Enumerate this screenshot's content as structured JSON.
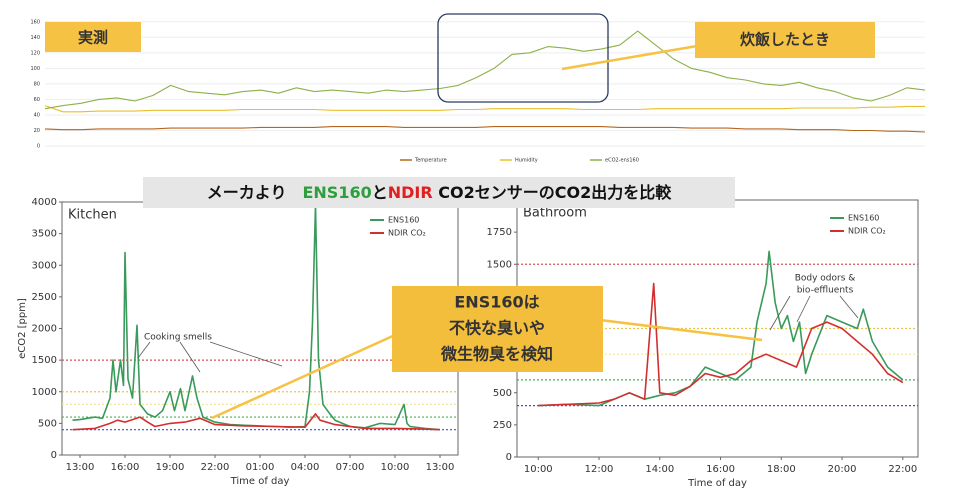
{
  "chart_data": [
    {
      "type": "line",
      "legend": "bottom",
      "grid": true,
      "frame": false,
      "categories": [
        null,
        null,
        null,
        null,
        null,
        null,
        null,
        null,
        null,
        null,
        null,
        null,
        null,
        null,
        null,
        null,
        null,
        null,
        null,
        null,
        null,
        null,
        null,
        null,
        null,
        null,
        null,
        null,
        null,
        null,
        null,
        null,
        null,
        null,
        null,
        null,
        null,
        null,
        null,
        null,
        null,
        null,
        null,
        null,
        null,
        null,
        null,
        null,
        null,
        null
      ],
      "ylim": [
        0,
        170
      ],
      "yticks": [
        0,
        20,
        40,
        60,
        80,
        100,
        120,
        140,
        160
      ],
      "series": [
        {
          "name": "Temperature",
          "color": "#b5651d",
          "values": [
            22,
            21,
            21,
            22,
            22,
            22,
            22,
            23,
            23,
            23,
            23,
            23,
            24,
            24,
            24,
            24,
            25,
            25,
            25,
            25,
            24,
            24,
            24,
            24,
            24,
            25,
            25,
            25,
            25,
            25,
            25,
            25,
            24,
            24,
            24,
            24,
            23,
            23,
            23,
            22,
            22,
            22,
            21,
            21,
            21,
            20,
            20,
            19,
            19,
            18
          ]
        },
        {
          "name": "Humidity",
          "color": "#e8c02a",
          "values": [
            52,
            44,
            44,
            45,
            45,
            45,
            46,
            46,
            46,
            46,
            46,
            47,
            47,
            47,
            47,
            47,
            46,
            46,
            46,
            46,
            46,
            46,
            46,
            47,
            47,
            48,
            48,
            48,
            48,
            48,
            47,
            47,
            47,
            47,
            48,
            48,
            48,
            48,
            48,
            48,
            48,
            48,
            49,
            49,
            49,
            49,
            50,
            50,
            51,
            51
          ]
        },
        {
          "name": "eCO2-ens160",
          "color": "#8db04a",
          "values": [
            48,
            52,
            55,
            60,
            62,
            58,
            65,
            78,
            70,
            68,
            66,
            70,
            72,
            68,
            75,
            70,
            72,
            70,
            68,
            72,
            70,
            72,
            74,
            78,
            88,
            100,
            118,
            120,
            128,
            126,
            122,
            125,
            130,
            148,
            130,
            112,
            100,
            95,
            88,
            85,
            80,
            78,
            82,
            75,
            70,
            62,
            58,
            65,
            75,
            72
          ]
        }
      ]
    },
    {
      "type": "line",
      "title": "Kitchen",
      "ylabel": "eCO2 [ppm]",
      "xlabel": "Time of day",
      "legend": "upper right",
      "grid": false,
      "frame": true,
      "xlim": [
        11.8,
        38.2
      ],
      "xticks": [
        {
          "value": 13,
          "label": "13:00"
        },
        {
          "value": 16,
          "label": "16:00"
        },
        {
          "value": 19,
          "label": "19:00"
        },
        {
          "value": 22,
          "label": "22:00"
        },
        {
          "value": 25,
          "label": "01:00"
        },
        {
          "value": 28,
          "label": "04:00"
        },
        {
          "value": 31,
          "label": "07:00"
        },
        {
          "value": 34,
          "label": "10:00"
        },
        {
          "value": 37,
          "label": "13:00"
        }
      ],
      "ylim": [
        0,
        4000
      ],
      "yticks": [
        0,
        500,
        1000,
        1500,
        2000,
        2500,
        3000,
        3500,
        4000
      ],
      "ref_lines": [
        {
          "value": 1500,
          "color": "#d9534f"
        },
        {
          "value": 1000,
          "color": "#e6c84a"
        },
        {
          "value": 800,
          "color": "#f3e79a"
        },
        {
          "value": 600,
          "color": "#4caf50"
        },
        {
          "value": 400,
          "color": "#3b4fd8"
        }
      ],
      "annotations": [
        "Cooking smells"
      ],
      "series": [
        {
          "name": "ENS160",
          "color": "#3a9a5b",
          "x": [
            12.5,
            13,
            14,
            14.5,
            15,
            15.2,
            15.4,
            15.7,
            15.9,
            16,
            16.2,
            16.5,
            16.8,
            17,
            17.5,
            18,
            18.5,
            19,
            19.3,
            19.7,
            20,
            20.5,
            20.8,
            21.2,
            22,
            23,
            24,
            25,
            26,
            27,
            28,
            28.3,
            28.5,
            28.7,
            28.9,
            29.2,
            29.5,
            30,
            31,
            32,
            33,
            34,
            34.6,
            34.8,
            35,
            36,
            37
          ],
          "values": [
            550,
            560,
            600,
            580,
            900,
            1500,
            1000,
            1500,
            1100,
            3200,
            1200,
            900,
            2050,
            800,
            650,
            600,
            700,
            1000,
            700,
            1050,
            700,
            1250,
            900,
            600,
            520,
            480,
            470,
            460,
            450,
            440,
            450,
            1000,
            2100,
            3950,
            1500,
            800,
            700,
            550,
            450,
            430,
            500,
            480,
            800,
            500,
            450,
            420,
            400
          ]
        },
        {
          "name": "NDIR CO₂",
          "color": "#d32f2f",
          "x": [
            12.5,
            14,
            15,
            15.5,
            16,
            17,
            17.5,
            18,
            19,
            20,
            21,
            22,
            24,
            26,
            28,
            28.7,
            29,
            30,
            32,
            34,
            36,
            37
          ],
          "values": [
            400,
            420,
            500,
            550,
            520,
            600,
            520,
            450,
            500,
            520,
            580,
            480,
            460,
            450,
            440,
            650,
            550,
            480,
            420,
            420,
            410,
            400
          ]
        }
      ]
    },
    {
      "type": "line",
      "title": "Bathroom",
      "xlabel": "Time of day",
      "legend": "upper right",
      "grid": false,
      "frame": true,
      "xlim": [
        9.3,
        22.5
      ],
      "xticks": [
        {
          "value": 10,
          "label": "10:00"
        },
        {
          "value": 12,
          "label": "12:00"
        },
        {
          "value": 14,
          "label": "14:00"
        },
        {
          "value": 16,
          "label": "16:00"
        },
        {
          "value": 18,
          "label": "18:00"
        },
        {
          "value": 20,
          "label": "20:00"
        },
        {
          "value": 22,
          "label": "22:00"
        }
      ],
      "ylim": [
        0,
        2000
      ],
      "yticks": [
        0,
        250,
        500,
        750,
        1000,
        1250,
        1500,
        1750
      ],
      "ref_lines": [
        {
          "value": 1500,
          "color": "#d9534f"
        },
        {
          "value": 1000,
          "color": "#e6c84a"
        },
        {
          "value": 800,
          "color": "#f3e79a"
        },
        {
          "value": 600,
          "color": "#4caf50"
        },
        {
          "value": 400,
          "color": "#3b4fd8"
        }
      ],
      "annotations": [
        "Body odors &",
        "bio-effluents"
      ],
      "series": [
        {
          "name": "ENS160",
          "color": "#3a9a5b",
          "x": [
            10,
            11,
            12,
            12.5,
            13,
            13.5,
            14,
            14.5,
            15,
            15.5,
            16,
            16.5,
            17,
            17.2,
            17.5,
            17.6,
            17.8,
            18,
            18.2,
            18.4,
            18.6,
            18.8,
            19,
            19.5,
            20,
            20.5,
            20.7,
            21,
            21.5,
            22
          ],
          "values": [
            400,
            410,
            400,
            450,
            500,
            450,
            480,
            500,
            550,
            700,
            650,
            600,
            700,
            1050,
            1350,
            1600,
            1200,
            1000,
            1100,
            900,
            1050,
            650,
            800,
            1100,
            1050,
            1000,
            1150,
            900,
            700,
            600
          ]
        },
        {
          "name": "NDIR CO₂",
          "color": "#d32f2f",
          "x": [
            10,
            12,
            12.5,
            13,
            13.5,
            13.8,
            14,
            14.5,
            15,
            15.5,
            16,
            16.5,
            17,
            17.5,
            18,
            18.5,
            19,
            19.5,
            20,
            20.5,
            21,
            21.5,
            22
          ],
          "values": [
            400,
            420,
            450,
            500,
            450,
            1350,
            500,
            480,
            550,
            650,
            620,
            650,
            750,
            800,
            750,
            700,
            1000,
            1050,
            1000,
            900,
            800,
            650,
            580
          ]
        }
      ]
    }
  ],
  "callouts": {
    "measured": "実測",
    "cooking_rice": "炊飯したとき",
    "banner": [
      {
        "text": "メーカより　",
        "color": "#111111"
      },
      {
        "text": "ENS160",
        "color": "#2e9e3e"
      },
      {
        "text": "と",
        "color": "#111111"
      },
      {
        "text": "NDIR",
        "color": "#e02020"
      },
      {
        "text": " CO2センサーのCO2出力を比較",
        "color": "#111111"
      }
    ],
    "detect": [
      {
        "text": "ENS160は",
        "color": "#2e9e3e"
      },
      {
        "text": "不快な臭いや",
        "color": "#ffffff"
      },
      {
        "text": "微生物臭を検知",
        "color": "#ffffff"
      }
    ]
  }
}
